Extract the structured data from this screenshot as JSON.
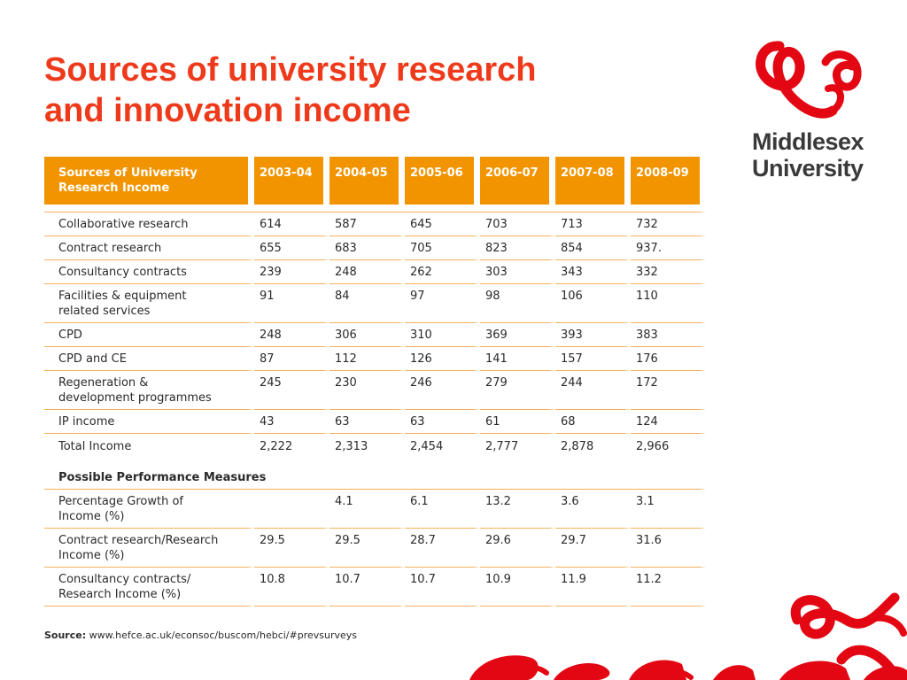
{
  "title": {
    "line1": "Sources of university research",
    "line2": "and innovation income"
  },
  "logo": {
    "line1": "Middlesex",
    "line2": "University",
    "color": "#e30613"
  },
  "accent_color": "#f29400",
  "title_color": "#ee3a1b",
  "table": {
    "header": {
      "label_line1": "Sources of University",
      "label_line2": "Research Income",
      "years": [
        "2003-04",
        "2004-05",
        "2005-06",
        "2006-07",
        "2007-08",
        "2008-09"
      ]
    },
    "income_rows": [
      {
        "label": [
          "Collaborative research"
        ],
        "values": [
          "614",
          "587",
          "645",
          "703",
          "713",
          "732"
        ]
      },
      {
        "label": [
          "Contract research"
        ],
        "values": [
          "655",
          "683",
          "705",
          "823",
          "854",
          "937."
        ]
      },
      {
        "label": [
          "Consultancy contracts"
        ],
        "values": [
          "239",
          "248",
          "262",
          "303",
          "343",
          "332"
        ]
      },
      {
        "label": [
          "Facilities & equipment",
          "related services"
        ],
        "values": [
          "91",
          "84",
          "97",
          "98",
          "106",
          "110"
        ]
      },
      {
        "label": [
          "CPD"
        ],
        "values": [
          "248",
          "306",
          "310",
          "369",
          "393",
          "383"
        ]
      },
      {
        "label": [
          "CPD and CE"
        ],
        "values": [
          "87",
          "112",
          "126",
          "141",
          "157",
          "176"
        ]
      },
      {
        "label": [
          "Regeneration &",
          "development programmes"
        ],
        "values": [
          "245",
          "230",
          "246",
          "279",
          "244",
          "172"
        ]
      },
      {
        "label": [
          "IP income"
        ],
        "values": [
          "43",
          "63",
          "63",
          "61",
          "68",
          "124"
        ]
      }
    ],
    "total_row": {
      "label": [
        "Total Income"
      ],
      "values": [
        "2,222",
        "2,313",
        "2,454",
        "2,777",
        "2,878",
        "2,966"
      ]
    },
    "section_title": "Possible Performance Measures",
    "measure_rows": [
      {
        "label": [
          "Percentage Growth of",
          "Income (%)"
        ],
        "values": [
          "",
          "4.1",
          "6.1",
          "13.2",
          "3.6",
          "3.1"
        ]
      },
      {
        "label": [
          "Contract research/Research",
          "Income (%)"
        ],
        "values": [
          "29.5",
          "29.5",
          "28.7",
          "29.6",
          "29.7",
          "31.6"
        ]
      },
      {
        "label": [
          "Consultancy contracts/",
          "Research Income (%)"
        ],
        "values": [
          "10.8",
          "10.7",
          "10.7",
          "10.9",
          "11.9",
          "11.2"
        ]
      }
    ]
  },
  "source": {
    "label": "Source:",
    "url": " www.hefce.ac.uk/econsoc/buscom/hebci/#prevsurveys"
  }
}
